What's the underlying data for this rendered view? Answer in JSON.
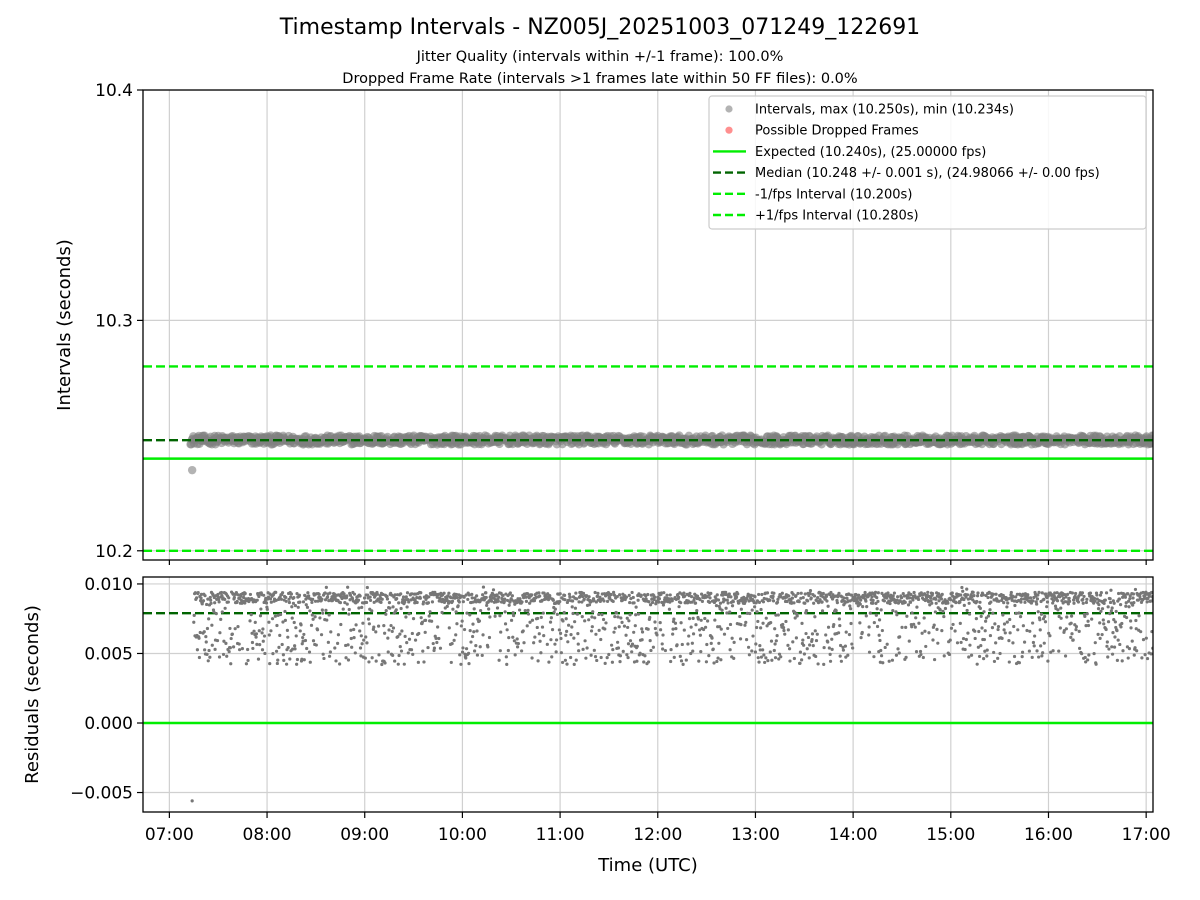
{
  "figure": {
    "title": "Timestamp Intervals - NZ005J_20251003_071249_122691",
    "subtitle_1": "Jitter Quality (intervals within +/-1 frame): 100.0%",
    "subtitle_2": "Dropped Frame Rate (intervals >1 frames late within 50 FF files): 0.0%"
  },
  "chart_data": [
    {
      "type": "scatter",
      "ylabel": "Intervals (seconds)",
      "xlabel": "",
      "ylim": [
        10.196,
        10.4
      ],
      "yticks": [
        "10.2",
        "10.3",
        "10.4"
      ],
      "ytick_values": [
        10.2,
        10.3,
        10.4
      ],
      "xlim_hours": [
        6.73,
        17.07
      ],
      "grid": true,
      "legend_position": "upper right",
      "series": [
        {
          "name": "Intervals, max (10.250s), min (10.234s)",
          "kind": "scatter",
          "color": "#808080",
          "x_start": "07:13",
          "x_end": "17:07",
          "y_min": 10.2455,
          "y_max": 10.25,
          "outlier": {
            "x": "07:14",
            "y": 10.235
          }
        },
        {
          "name": "Possible Dropped Frames",
          "kind": "scatter",
          "color": "#ff4444",
          "points": []
        },
        {
          "name": "Expected (10.240s), (25.00000 fps)",
          "kind": "hline",
          "color": "#00ee00",
          "style": "solid",
          "y": 10.24
        },
        {
          "name": "Median (10.248 +/- 0.001 s), (24.98066 +/- 0.00 fps)",
          "kind": "hline",
          "color": "#006400",
          "style": "dashed",
          "y": 10.248
        },
        {
          "name": "-1/fps Interval (10.200s)",
          "kind": "hline",
          "color": "#00ee00",
          "style": "dashed",
          "y": 10.2
        },
        {
          "name": "+1/fps Interval (10.280s)",
          "kind": "hline",
          "color": "#00ee00",
          "style": "dashed",
          "y": 10.28
        }
      ]
    },
    {
      "type": "scatter",
      "ylabel": "Residuals (seconds)",
      "xlabel": "Time (UTC)",
      "ylim": [
        -0.0064,
        0.0105
      ],
      "yticks": [
        "0.010",
        "0.005",
        "0.000",
        "−0.005"
      ],
      "ytick_values": [
        0.01,
        0.005,
        0.0,
        -0.005
      ],
      "xticks": [
        "07:00",
        "08:00",
        "09:00",
        "10:00",
        "11:00",
        "12:00",
        "13:00",
        "14:00",
        "15:00",
        "16:00",
        "17:00"
      ],
      "xlim_hours": [
        6.73,
        17.07
      ],
      "grid": true,
      "series": [
        {
          "name": "",
          "kind": "scatter",
          "color": "#777777",
          "x_start": "07:15",
          "x_end": "17:07",
          "y_min": 0.0042,
          "y_max": 0.0098,
          "outlier": {
            "x": "07:14",
            "y": -0.0056
          }
        },
        {
          "name": "",
          "kind": "hline",
          "color": "#00ee00",
          "style": "solid",
          "y": 0.0
        },
        {
          "name": "",
          "kind": "hline",
          "color": "#006400",
          "style": "dashed",
          "y": 0.0079
        }
      ]
    }
  ]
}
